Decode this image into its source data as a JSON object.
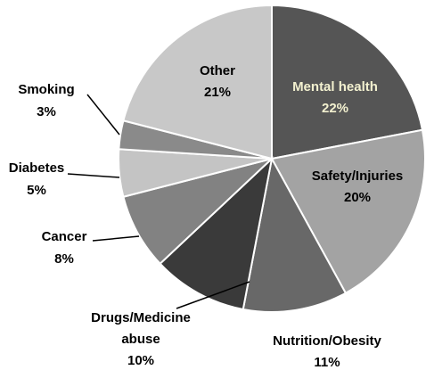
{
  "chart_data": {
    "type": "pie",
    "start_angle_deg": 0,
    "direction": "clockwise",
    "slices": [
      {
        "name": "Mental health",
        "value": 22,
        "label": "22%",
        "color": "#555555",
        "text_color": "#f2f0cf"
      },
      {
        "name": "Safety/Injuries",
        "value": 20,
        "label": "20%",
        "color": "#a3a3a3",
        "text_color": "#000000"
      },
      {
        "name": "Nutrition/Obesity",
        "value": 11,
        "label": "11%",
        "color": "#686868",
        "text_color": "#000000"
      },
      {
        "name": "Drugs/Medicine abuse",
        "value": 10,
        "label": "10%",
        "color": "#3a3a3a",
        "text_color": "#000000"
      },
      {
        "name": "Cancer",
        "value": 8,
        "label": "8%",
        "color": "#828282",
        "text_color": "#000000"
      },
      {
        "name": "Diabetes",
        "value": 5,
        "label": "5%",
        "color": "#c4c4c4",
        "text_color": "#000000"
      },
      {
        "name": "Smoking",
        "value": 3,
        "label": "3%",
        "color": "#8a8a8a",
        "text_color": "#000000"
      },
      {
        "name": "Other",
        "value": 21,
        "label": "21%",
        "color": "#c8c8c8",
        "text_color": "#000000"
      }
    ]
  }
}
